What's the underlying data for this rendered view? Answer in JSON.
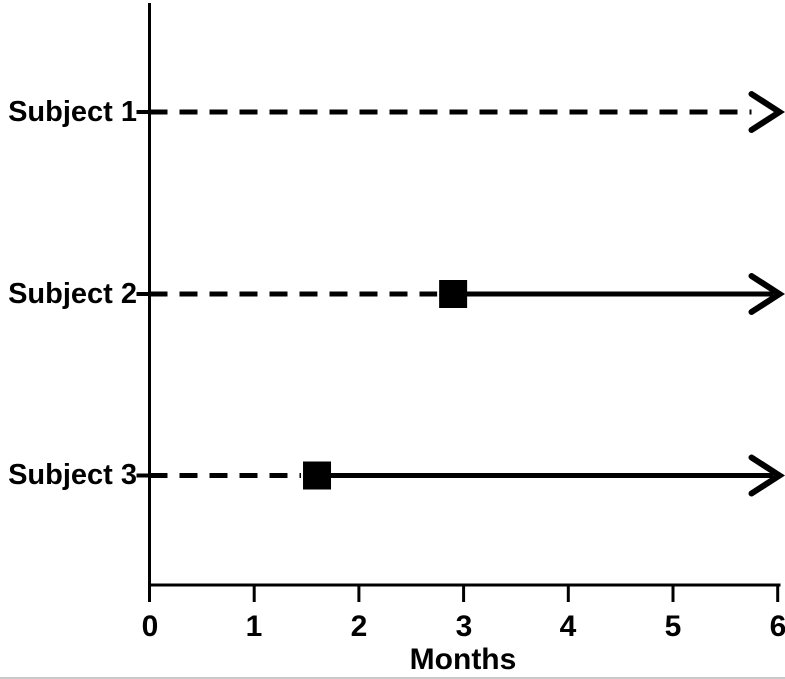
{
  "figure": {
    "background": "#ffffff",
    "ink_color": "#000000",
    "bottom_rule_color": "#c9c9c9"
  },
  "chart_data": {
    "type": "line",
    "variant": "subject-event-timeline",
    "xlabel": "Months",
    "xlim": [
      0,
      6
    ],
    "x_ticks": [
      0,
      1,
      2,
      3,
      4,
      5,
      6
    ],
    "grid": false,
    "legend": false,
    "marker_shape": "filled-square",
    "line_styles": {
      "pre_event": "dashed",
      "post_event": "solid",
      "end_decoration": "open-arrowhead"
    },
    "rows": [
      {
        "label": "Subject 1",
        "dashed_start": 0,
        "dashed_end": 6,
        "event_marker_x": null,
        "solid_start": null,
        "solid_end": null,
        "arrow_at": 6
      },
      {
        "label": "Subject 2",
        "dashed_start": 0,
        "dashed_end": 2.9,
        "event_marker_x": 2.9,
        "solid_start": 2.9,
        "solid_end": 6,
        "arrow_at": 6
      },
      {
        "label": "Subject 3",
        "dashed_start": 0,
        "dashed_end": 1.6,
        "event_marker_x": 1.6,
        "solid_start": 1.6,
        "solid_end": 6,
        "arrow_at": 6
      }
    ]
  }
}
